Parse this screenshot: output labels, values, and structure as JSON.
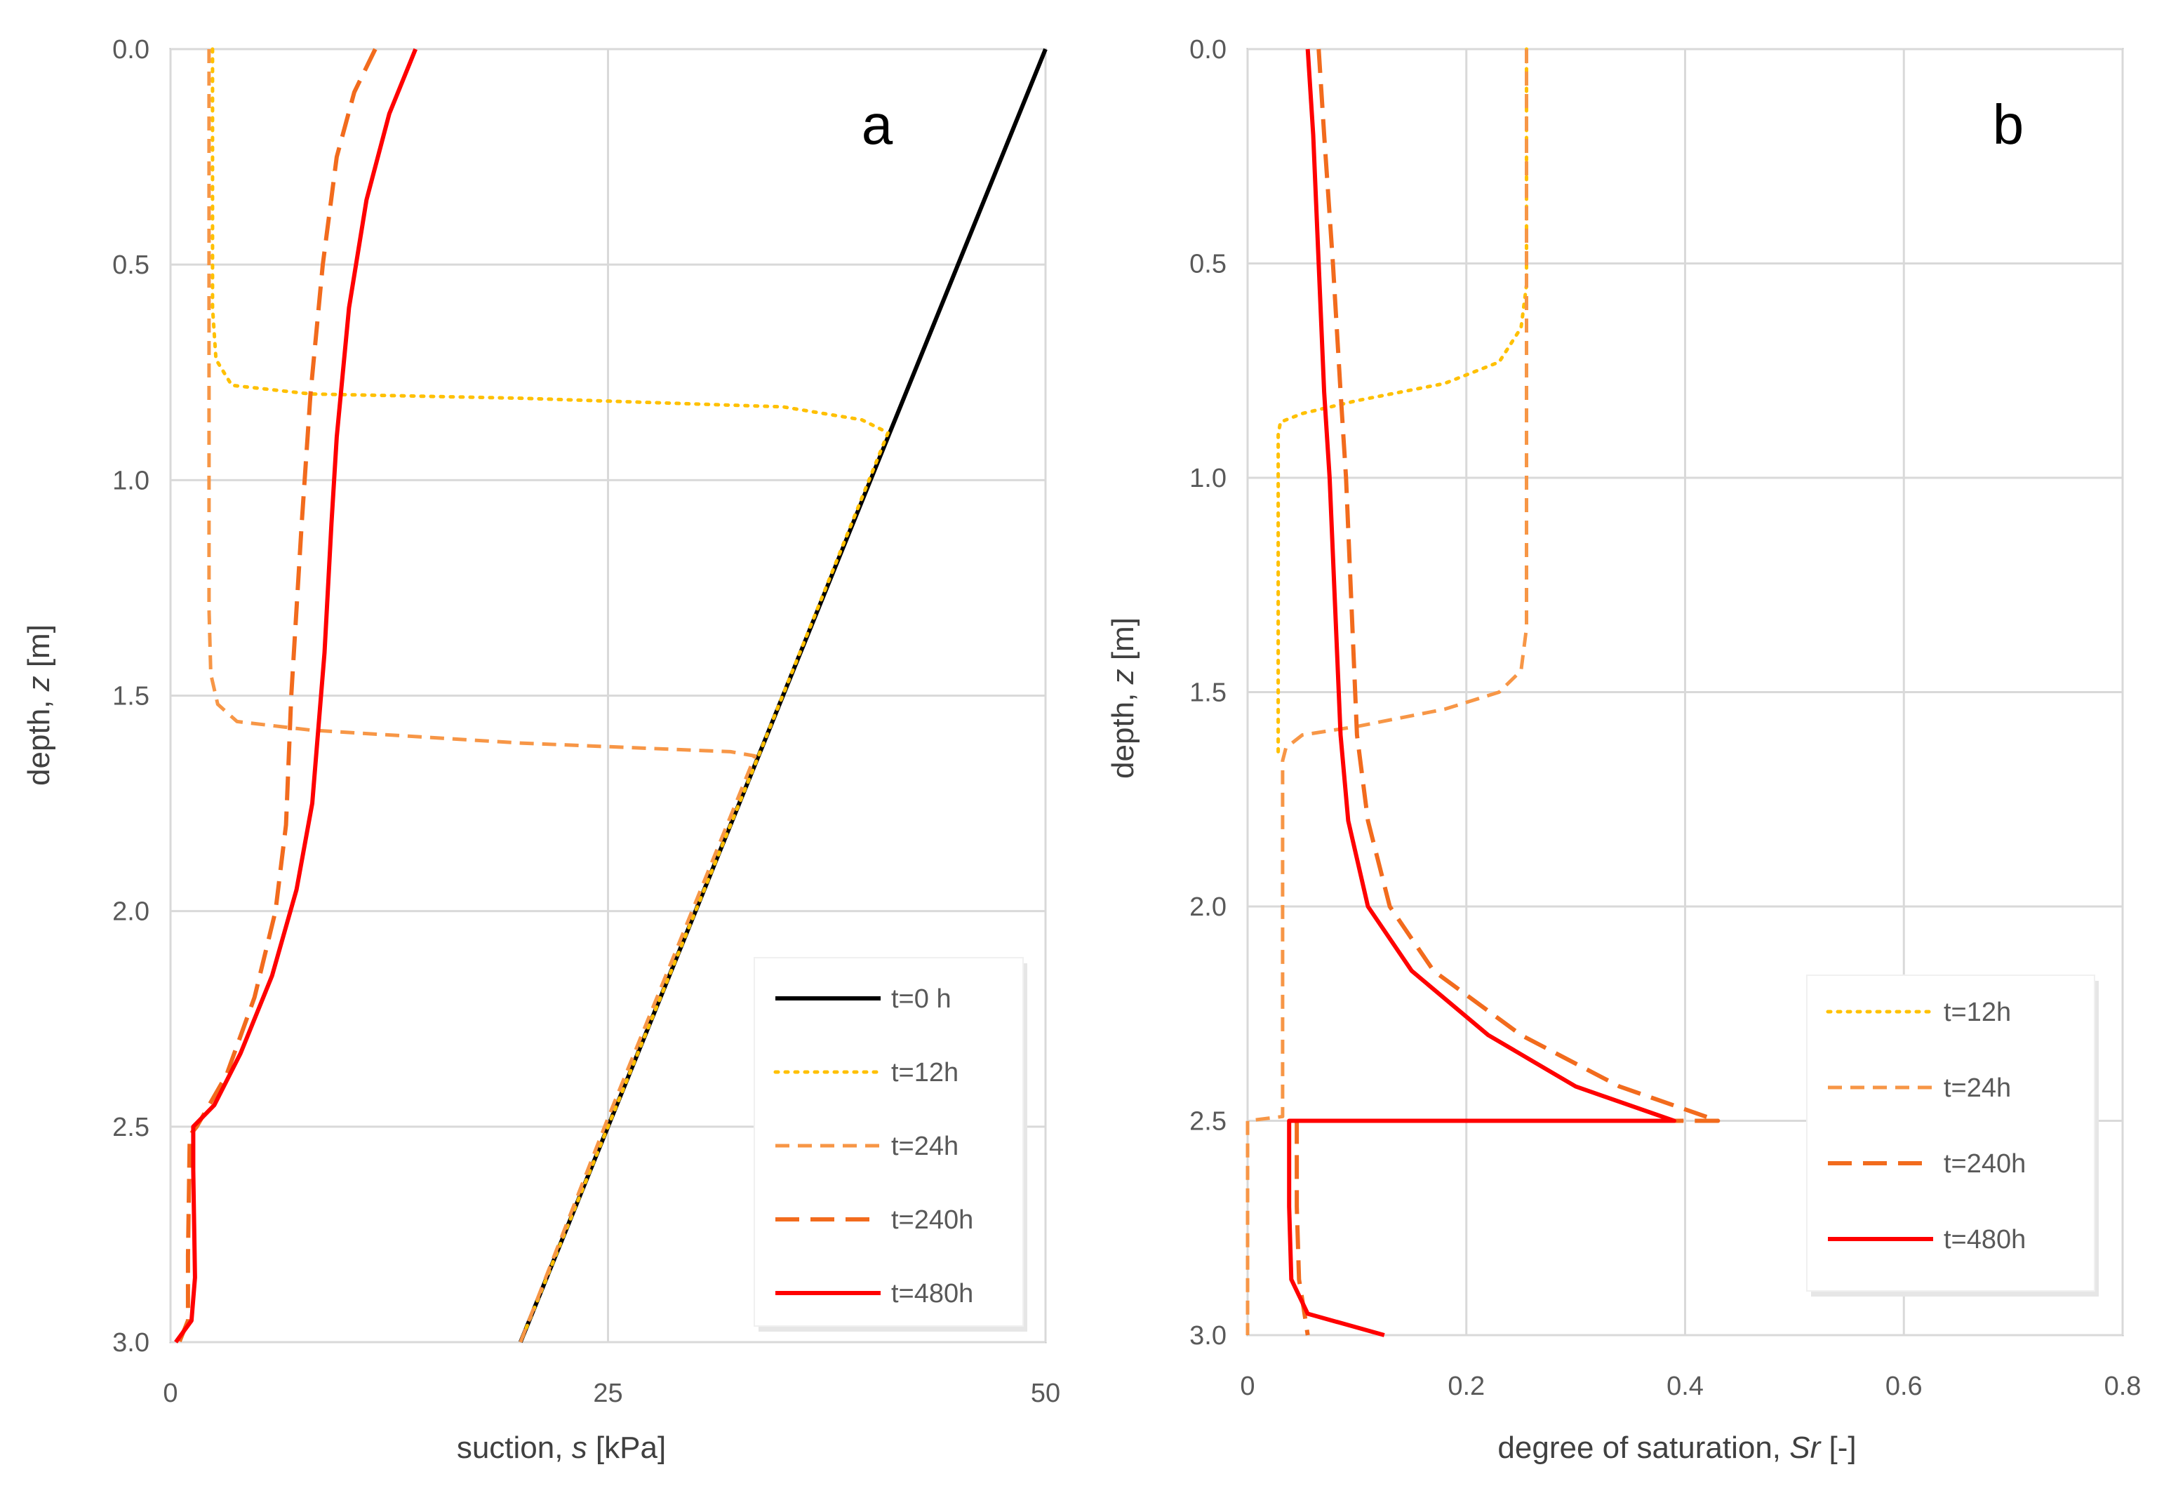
{
  "chart_data": [
    {
      "type": "line",
      "panel_label": "a",
      "xlabel_prefix": "suction, ",
      "xlabel_var": "s",
      "xlabel_suffix": " [kPa]",
      "ylabel_prefix": "depth, ",
      "ylabel_var": "z",
      "ylabel_suffix": " [m]",
      "xlim": [
        0,
        50
      ],
      "ylim": [
        3.0,
        0.0
      ],
      "x_ticks": [
        0,
        25,
        50
      ],
      "x_tick_labels": [
        "0",
        "25",
        "50"
      ],
      "y_ticks": [
        0.0,
        0.5,
        1.0,
        1.5,
        2.0,
        2.5,
        3.0
      ],
      "y_tick_labels": [
        "0.0",
        "0.5",
        "1.0",
        "1.5",
        "2.0",
        "2.5",
        "3.0"
      ],
      "grid": true,
      "legend_position": "bottom-right",
      "series": [
        {
          "name": "t=0 h",
          "color": "#000000",
          "dash": "solid",
          "points": [
            [
              50,
              0.0
            ],
            [
              20,
              3.0
            ]
          ]
        },
        {
          "name": "t=12h",
          "color": "#ffc000",
          "dash": "dotted",
          "points": [
            [
              2.4,
              0.0
            ],
            [
              2.4,
              0.6
            ],
            [
              2.6,
              0.72
            ],
            [
              3.5,
              0.78
            ],
            [
              8,
              0.8
            ],
            [
              20,
              0.81
            ],
            [
              35,
              0.83
            ],
            [
              39.5,
              0.86
            ],
            [
              41,
              0.89
            ],
            [
              33.4,
              1.66
            ],
            [
              20,
              3.0
            ]
          ]
        },
        {
          "name": "t=24h",
          "color": "#f79646",
          "dash": "dashed",
          "points": [
            [
              2.2,
              0.0
            ],
            [
              2.2,
              1.0
            ],
            [
              2.2,
              1.3
            ],
            [
              2.3,
              1.45
            ],
            [
              2.7,
              1.52
            ],
            [
              3.8,
              1.56
            ],
            [
              8,
              1.58
            ],
            [
              20,
              1.61
            ],
            [
              32,
              1.63
            ],
            [
              33.4,
              1.64
            ],
            [
              30,
              1.98
            ],
            [
              25,
              2.48
            ],
            [
              20,
              3.0
            ],
            [
              20,
              3.0
            ]
          ]
        },
        {
          "name": "t=240h",
          "color": "#f26b1d",
          "dash": "longdash",
          "points": [
            [
              11.7,
              0.0
            ],
            [
              10.5,
              0.1
            ],
            [
              9.5,
              0.25
            ],
            [
              8.7,
              0.5
            ],
            [
              8.0,
              0.8
            ],
            [
              7.5,
              1.1
            ],
            [
              6.9,
              1.5
            ],
            [
              6.6,
              1.8
            ],
            [
              6.0,
              2.0
            ],
            [
              4.8,
              2.2
            ],
            [
              3.2,
              2.38
            ],
            [
              1.5,
              2.5
            ],
            [
              1.1,
              2.52
            ],
            [
              1.0,
              2.8
            ],
            [
              1.0,
              2.95
            ],
            [
              0.5,
              3.0
            ]
          ]
        },
        {
          "name": "t=480h",
          "color": "#ff0000",
          "dash": "solid",
          "points": [
            [
              14.0,
              0.0
            ],
            [
              12.5,
              0.15
            ],
            [
              11.2,
              0.35
            ],
            [
              10.2,
              0.6
            ],
            [
              9.5,
              0.9
            ],
            [
              9.2,
              1.1
            ],
            [
              8.8,
              1.4
            ],
            [
              8.4,
              1.6
            ],
            [
              8.1,
              1.75
            ],
            [
              7.2,
              1.95
            ],
            [
              5.8,
              2.15
            ],
            [
              4.0,
              2.33
            ],
            [
              2.5,
              2.45
            ],
            [
              1.3,
              2.5
            ],
            [
              1.3,
              2.6
            ],
            [
              1.4,
              2.85
            ],
            [
              1.2,
              2.95
            ],
            [
              0.3,
              3.0
            ]
          ]
        }
      ]
    },
    {
      "type": "line",
      "panel_label": "b",
      "xlabel_prefix": "degree of saturation, ",
      "xlabel_var": "Sr",
      "xlabel_suffix": " [-]",
      "ylabel_prefix": "depth, ",
      "ylabel_var": "z",
      "ylabel_suffix": " [m]",
      "xlim": [
        0,
        0.8
      ],
      "ylim": [
        3.0,
        0.0
      ],
      "x_ticks": [
        0,
        0.2,
        0.4,
        0.6,
        0.8
      ],
      "x_tick_labels": [
        "0",
        "0.2",
        "0.4",
        "0.6",
        "0.8"
      ],
      "y_ticks": [
        0.0,
        0.5,
        1.0,
        1.5,
        2.0,
        2.5,
        3.0
      ],
      "y_tick_labels": [
        "0.0",
        "0.5",
        "1.0",
        "1.5",
        "2.0",
        "2.5",
        "3.0"
      ],
      "grid": true,
      "legend_position": "bottom-right",
      "series": [
        {
          "name": "t=12h",
          "color": "#ffc000",
          "dash": "dotted",
          "points": [
            [
              0.255,
              0.0
            ],
            [
              0.255,
              0.55
            ],
            [
              0.25,
              0.65
            ],
            [
              0.23,
              0.73
            ],
            [
              0.18,
              0.78
            ],
            [
              0.1,
              0.82
            ],
            [
              0.05,
              0.85
            ],
            [
              0.03,
              0.87
            ],
            [
              0.028,
              0.9
            ],
            [
              0.028,
              1.2
            ],
            [
              0.028,
              1.6
            ],
            [
              0.028,
              1.64
            ]
          ]
        },
        {
          "name": "t=24h",
          "color": "#f79646",
          "dash": "dashed",
          "points": [
            [
              0.255,
              0.0
            ],
            [
              0.255,
              1.2
            ],
            [
              0.255,
              1.35
            ],
            [
              0.25,
              1.45
            ],
            [
              0.23,
              1.5
            ],
            [
              0.18,
              1.54
            ],
            [
              0.1,
              1.58
            ],
            [
              0.05,
              1.6
            ],
            [
              0.035,
              1.63
            ],
            [
              0.032,
              1.66
            ],
            [
              0.032,
              2.0
            ],
            [
              0.032,
              2.49
            ],
            [
              0.0,
              2.5
            ],
            [
              0.0,
              3.0
            ]
          ]
        },
        {
          "name": "t=240h",
          "color": "#f26b1d",
          "dash": "longdash",
          "points": [
            [
              0.065,
              0.0
            ],
            [
              0.07,
              0.2
            ],
            [
              0.078,
              0.5
            ],
            [
              0.085,
              0.8
            ],
            [
              0.09,
              1.0
            ],
            [
              0.095,
              1.3
            ],
            [
              0.1,
              1.6
            ],
            [
              0.11,
              1.8
            ],
            [
              0.13,
              2.0
            ],
            [
              0.17,
              2.15
            ],
            [
              0.25,
              2.3
            ],
            [
              0.34,
              2.42
            ],
            [
              0.43,
              2.5
            ],
            [
              0.1,
              2.5
            ],
            [
              0.045,
              2.5
            ],
            [
              0.045,
              2.7
            ],
            [
              0.047,
              2.87
            ],
            [
              0.052,
              2.95
            ],
            [
              0.055,
              3.0
            ]
          ]
        },
        {
          "name": "t=480h",
          "color": "#ff0000",
          "dash": "solid",
          "points": [
            [
              0.055,
              0.0
            ],
            [
              0.06,
              0.2
            ],
            [
              0.065,
              0.5
            ],
            [
              0.07,
              0.8
            ],
            [
              0.075,
              1.0
            ],
            [
              0.08,
              1.3
            ],
            [
              0.085,
              1.6
            ],
            [
              0.092,
              1.8
            ],
            [
              0.11,
              2.0
            ],
            [
              0.15,
              2.15
            ],
            [
              0.22,
              2.3
            ],
            [
              0.3,
              2.42
            ],
            [
              0.39,
              2.5
            ],
            [
              0.1,
              2.5
            ],
            [
              0.038,
              2.5
            ],
            [
              0.038,
              2.7
            ],
            [
              0.04,
              2.87
            ],
            [
              0.055,
              2.95
            ],
            [
              0.125,
              3.0
            ]
          ]
        }
      ]
    }
  ]
}
